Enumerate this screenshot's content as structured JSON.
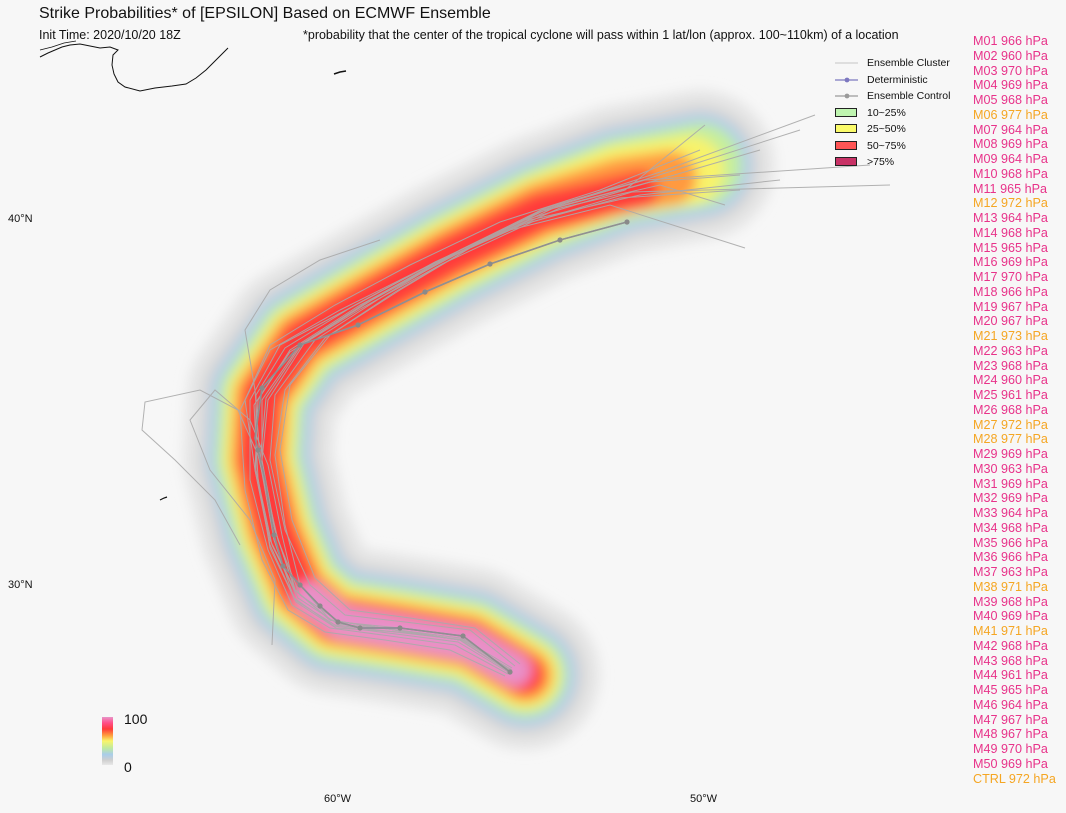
{
  "header": {
    "title": "Strike Probabilities* of [EPSILON] Based on ECMWF Ensemble",
    "init_time": "Init Time: 2020/10/20 18Z",
    "footnote": "*probability that the center of the tropical cyclone will pass within 1 lat/lon (approx. 100~110km) of a location"
  },
  "axes": {
    "lat_labels": [
      "40°N",
      "30°N"
    ],
    "lon_labels": [
      "60°W",
      "50°W"
    ]
  },
  "legend": {
    "items": [
      {
        "label": "Ensemble Cluster",
        "kind": "line",
        "color": "#b4b4b4"
      },
      {
        "label": "Deterministic",
        "kind": "line-dot",
        "color": "#7d78c0"
      },
      {
        "label": "Ensemble Control",
        "kind": "line-dot",
        "color": "#9a9a9a"
      },
      {
        "label": "10~25%",
        "kind": "box",
        "color": "#bff5b0"
      },
      {
        "label": "25~50%",
        "kind": "box",
        "color": "#fbfb6a"
      },
      {
        "label": "50~75%",
        "kind": "box",
        "color": "#ff5555"
      },
      {
        "label": ">75%",
        "kind": "box",
        "color": "#c83266"
      }
    ]
  },
  "colorbar": {
    "max_label": "100",
    "min_label": "0"
  },
  "colors": {
    "normal_member": "#e8338a",
    "weak_member": "#f5a623"
  },
  "members": [
    {
      "label": "M01 966 hPa",
      "weak": false
    },
    {
      "label": "M02 960 hPa",
      "weak": false
    },
    {
      "label": "M03 970 hPa",
      "weak": false
    },
    {
      "label": "M04 969 hPa",
      "weak": false
    },
    {
      "label": "M05 968 hPa",
      "weak": false
    },
    {
      "label": "M06 977 hPa",
      "weak": true
    },
    {
      "label": "M07 964 hPa",
      "weak": false
    },
    {
      "label": "M08 969 hPa",
      "weak": false
    },
    {
      "label": "M09 964 hPa",
      "weak": false
    },
    {
      "label": "M10 968 hPa",
      "weak": false
    },
    {
      "label": "M11 965 hPa",
      "weak": false
    },
    {
      "label": "M12 972 hPa",
      "weak": true
    },
    {
      "label": "M13 964 hPa",
      "weak": false
    },
    {
      "label": "M14 968 hPa",
      "weak": false
    },
    {
      "label": "M15 965 hPa",
      "weak": false
    },
    {
      "label": "M16 969 hPa",
      "weak": false
    },
    {
      "label": "M17 970 hPa",
      "weak": false
    },
    {
      "label": "M18 966 hPa",
      "weak": false
    },
    {
      "label": "M19 967 hPa",
      "weak": false
    },
    {
      "label": "M20 967 hPa",
      "weak": false
    },
    {
      "label": "M21 973 hPa",
      "weak": true
    },
    {
      "label": "M22 963 hPa",
      "weak": false
    },
    {
      "label": "M23 968 hPa",
      "weak": false
    },
    {
      "label": "M24 960 hPa",
      "weak": false
    },
    {
      "label": "M25 961 hPa",
      "weak": false
    },
    {
      "label": "M26 968 hPa",
      "weak": false
    },
    {
      "label": "M27 972 hPa",
      "weak": true
    },
    {
      "label": "M28 977 hPa",
      "weak": true
    },
    {
      "label": "M29 969 hPa",
      "weak": false
    },
    {
      "label": "M30 963 hPa",
      "weak": false
    },
    {
      "label": "M31 969 hPa",
      "weak": false
    },
    {
      "label": "M32 969 hPa",
      "weak": false
    },
    {
      "label": "M33 964 hPa",
      "weak": false
    },
    {
      "label": "M34 968 hPa",
      "weak": false
    },
    {
      "label": "M35 966 hPa",
      "weak": false
    },
    {
      "label": "M36 966 hPa",
      "weak": false
    },
    {
      "label": "M37 963 hPa",
      "weak": false
    },
    {
      "label": "M38 971 hPa",
      "weak": true
    },
    {
      "label": "M39 968 hPa",
      "weak": false
    },
    {
      "label": "M40 969 hPa",
      "weak": false
    },
    {
      "label": "M41 971 hPa",
      "weak": true
    },
    {
      "label": "M42 968 hPa",
      "weak": false
    },
    {
      "label": "M43 968 hPa",
      "weak": false
    },
    {
      "label": "M44 961 hPa",
      "weak": false
    },
    {
      "label": "M45 965 hPa",
      "weak": false
    },
    {
      "label": "M46 964 hPa",
      "weak": false
    },
    {
      "label": "M47 967 hPa",
      "weak": false
    },
    {
      "label": "M48 967 hPa",
      "weak": false
    },
    {
      "label": "M49 970 hPa",
      "weak": false
    },
    {
      "label": "M50 969 hPa",
      "weak": false
    },
    {
      "label": "CTRL 972 hPa",
      "weak": true
    }
  ]
}
